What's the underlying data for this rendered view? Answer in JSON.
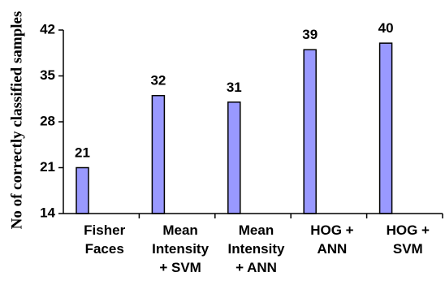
{
  "chart_data": {
    "type": "bar",
    "categories": [
      [
        "Fisher",
        "Faces"
      ],
      [
        "Mean",
        "Intensity",
        "+ SVM"
      ],
      [
        "Mean",
        "Intensity",
        "+ ANN"
      ],
      [
        "HOG +",
        "ANN"
      ],
      [
        "HOG +",
        "SVM"
      ]
    ],
    "values": [
      21,
      32,
      31,
      39,
      40
    ],
    "data_labels": [
      "21",
      "32",
      "31",
      "39",
      "40"
    ],
    "title": "",
    "xlabel": "",
    "ylabel": "No of correctly classified samples",
    "ylim": [
      14,
      42
    ],
    "yticks": [
      14,
      21,
      28,
      35,
      42
    ],
    "bar_color": "#9999ff",
    "bar_edge_color": "#000000",
    "grid": false,
    "legend": "none"
  }
}
